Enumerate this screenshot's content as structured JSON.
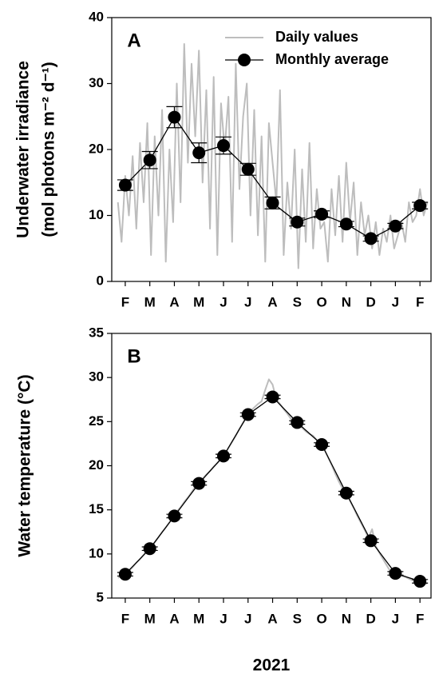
{
  "chart_data": [
    {
      "type": "line",
      "panel_label": "A",
      "ylabel": [
        "Underwater irradiance",
        "(mol photons m⁻² d⁻¹)"
      ],
      "xlim": [
        -0.55,
        12.45
      ],
      "xticks": [
        {
          "value": 0,
          "label": "F"
        },
        {
          "value": 1,
          "label": "M"
        },
        {
          "value": 2,
          "label": "A"
        },
        {
          "value": 3,
          "label": "M"
        },
        {
          "value": 4,
          "label": "J"
        },
        {
          "value": 5,
          "label": "J"
        },
        {
          "value": 6,
          "label": "A"
        },
        {
          "value": 7,
          "label": "S"
        },
        {
          "value": 8,
          "label": "O"
        },
        {
          "value": 9,
          "label": "N"
        },
        {
          "value": 10,
          "label": "D"
        },
        {
          "value": 11,
          "label": "J"
        },
        {
          "value": 12,
          "label": "F"
        }
      ],
      "ylim": [
        0,
        40
      ],
      "yticks": [
        0,
        10,
        20,
        30,
        40
      ],
      "legend": "upper right",
      "series": [
        {
          "name": "Daily values",
          "color": "#bdbdbd",
          "x": [
            -0.3,
            -0.15,
            0,
            0.15,
            0.3,
            0.45,
            0.6,
            0.75,
            0.9,
            1.05,
            1.2,
            1.35,
            1.5,
            1.65,
            1.8,
            1.95,
            2.1,
            2.25,
            2.4,
            2.55,
            2.7,
            2.85,
            3,
            3.15,
            3.3,
            3.45,
            3.6,
            3.75,
            3.9,
            4.05,
            4.2,
            4.35,
            4.5,
            4.65,
            4.8,
            4.95,
            5.1,
            5.25,
            5.4,
            5.55,
            5.7,
            5.85,
            6,
            6.15,
            6.3,
            6.45,
            6.6,
            6.75,
            6.9,
            7.05,
            7.2,
            7.35,
            7.5,
            7.65,
            7.8,
            7.95,
            8.1,
            8.25,
            8.4,
            8.55,
            8.7,
            8.85,
            9,
            9.15,
            9.3,
            9.45,
            9.6,
            9.75,
            9.9,
            10.05,
            10.2,
            10.35,
            10.5,
            10.65,
            10.8,
            10.95,
            11.1,
            11.25,
            11.4,
            11.55,
            11.7,
            11.85,
            12,
            12.15,
            12.3
          ],
          "values": [
            12,
            6,
            16,
            10,
            19,
            8,
            21,
            12,
            24,
            4,
            22,
            10,
            26,
            3,
            20,
            9,
            30,
            12,
            36,
            18,
            33,
            22,
            35,
            15,
            29,
            8,
            31,
            4,
            27,
            20,
            28,
            6,
            33,
            14,
            25,
            30,
            10,
            26,
            7,
            22,
            3,
            24,
            18,
            12,
            29,
            4,
            15,
            8,
            20,
            2,
            17,
            6,
            21,
            5,
            14,
            8,
            9,
            3,
            14,
            7,
            16,
            6,
            18,
            9,
            15,
            4,
            12,
            7,
            10,
            5,
            9,
            4,
            8,
            6,
            10,
            5,
            7,
            9,
            6,
            12,
            9,
            10,
            14,
            10,
            12
          ]
        },
        {
          "name": "Monthly average",
          "color": "#000000",
          "marker": "circle",
          "x": [
            0,
            1,
            2,
            3,
            4,
            5,
            6,
            7,
            8,
            9,
            10,
            11,
            12
          ],
          "values": [
            14.6,
            18.4,
            24.9,
            19.5,
            20.6,
            17.0,
            11.9,
            9.0,
            10.2,
            8.7,
            6.5,
            8.4,
            11.5
          ],
          "errors": [
            0.8,
            1.3,
            1.6,
            1.5,
            1.3,
            0.9,
            0.9,
            0.6,
            0.5,
            0.4,
            0.4,
            0.4,
            0.5
          ]
        }
      ]
    },
    {
      "type": "line",
      "panel_label": "B",
      "ylabel": [
        "Water temperature (°C)"
      ],
      "xlabel": "2021",
      "xlim": [
        -0.55,
        12.45
      ],
      "xticks": [
        {
          "value": 0,
          "label": "F"
        },
        {
          "value": 1,
          "label": "M"
        },
        {
          "value": 2,
          "label": "A"
        },
        {
          "value": 3,
          "label": "M"
        },
        {
          "value": 4,
          "label": "J"
        },
        {
          "value": 5,
          "label": "J"
        },
        {
          "value": 6,
          "label": "A"
        },
        {
          "value": 7,
          "label": "S"
        },
        {
          "value": 8,
          "label": "O"
        },
        {
          "value": 9,
          "label": "N"
        },
        {
          "value": 10,
          "label": "D"
        },
        {
          "value": 11,
          "label": "J"
        },
        {
          "value": 12,
          "label": "F"
        }
      ],
      "ylim": [
        5,
        35
      ],
      "yticks": [
        5,
        10,
        15,
        20,
        25,
        30,
        35
      ],
      "series": [
        {
          "color": "#bdbdbd",
          "x": [
            -0.3,
            -0.15,
            0,
            0.15,
            0.3,
            0.45,
            0.6,
            0.75,
            0.9,
            1.05,
            1.2,
            1.35,
            1.5,
            1.65,
            1.8,
            1.95,
            2.1,
            2.25,
            2.4,
            2.55,
            2.7,
            2.85,
            3,
            3.15,
            3.3,
            3.45,
            3.6,
            3.75,
            3.9,
            4.05,
            4.2,
            4.35,
            4.5,
            4.65,
            4.8,
            4.95,
            5.1,
            5.25,
            5.4,
            5.55,
            5.7,
            5.85,
            6,
            6.15,
            6.3,
            6.45,
            6.6,
            6.75,
            6.9,
            7.05,
            7.2,
            7.35,
            7.5,
            7.65,
            7.8,
            7.95,
            8.1,
            8.25,
            8.4,
            8.55,
            8.7,
            8.85,
            9,
            9.15,
            9.3,
            9.45,
            9.6,
            9.75,
            9.9,
            10.05,
            10.2,
            10.35,
            10.5,
            10.65,
            10.8,
            10.95,
            11.1,
            11.25,
            11.4,
            11.55,
            11.7,
            11.85,
            12,
            12.15,
            12.3
          ],
          "values": [
            7.3,
            7.5,
            7.6,
            8.1,
            8.5,
            9.0,
            9.4,
            9.9,
            10.4,
            10.8,
            11.3,
            11.9,
            12.5,
            13.0,
            13.6,
            14.1,
            14.8,
            15.3,
            15.9,
            16.4,
            17.0,
            17.6,
            18.1,
            18.5,
            19.0,
            19.4,
            19.9,
            20.3,
            20.8,
            21.3,
            22.0,
            22.7,
            23.4,
            24.2,
            24.9,
            25.6,
            26.2,
            26.6,
            27.0,
            27.3,
            28.6,
            29.8,
            29.2,
            27.5,
            27.0,
            26.4,
            25.9,
            25.3,
            25.0,
            24.7,
            24.3,
            23.9,
            23.6,
            23.4,
            22.9,
            22.5,
            21.9,
            21.0,
            20.1,
            19.1,
            18.2,
            17.4,
            16.9,
            16.0,
            15.2,
            14.3,
            13.5,
            12.7,
            11.8,
            12.8,
            10.9,
            10.1,
            9.4,
            8.7,
            8.0,
            7.9,
            7.7,
            7.5,
            7.4,
            7.2,
            7.0,
            6.9,
            6.9,
            6.7,
            6.6
          ]
        },
        {
          "color": "#000000",
          "marker": "circle",
          "x": [
            0,
            1,
            2,
            3,
            4,
            5,
            6,
            7,
            8,
            9,
            10,
            11,
            12
          ],
          "values": [
            7.7,
            10.6,
            14.3,
            18.0,
            21.1,
            25.8,
            27.8,
            24.9,
            22.4,
            16.9,
            11.5,
            7.8,
            6.9
          ],
          "errors": [
            0.2,
            0.2,
            0.2,
            0.2,
            0.2,
            0.2,
            0.2,
            0.2,
            0.2,
            0.2,
            0.2,
            0.2,
            0.2
          ]
        }
      ]
    }
  ]
}
